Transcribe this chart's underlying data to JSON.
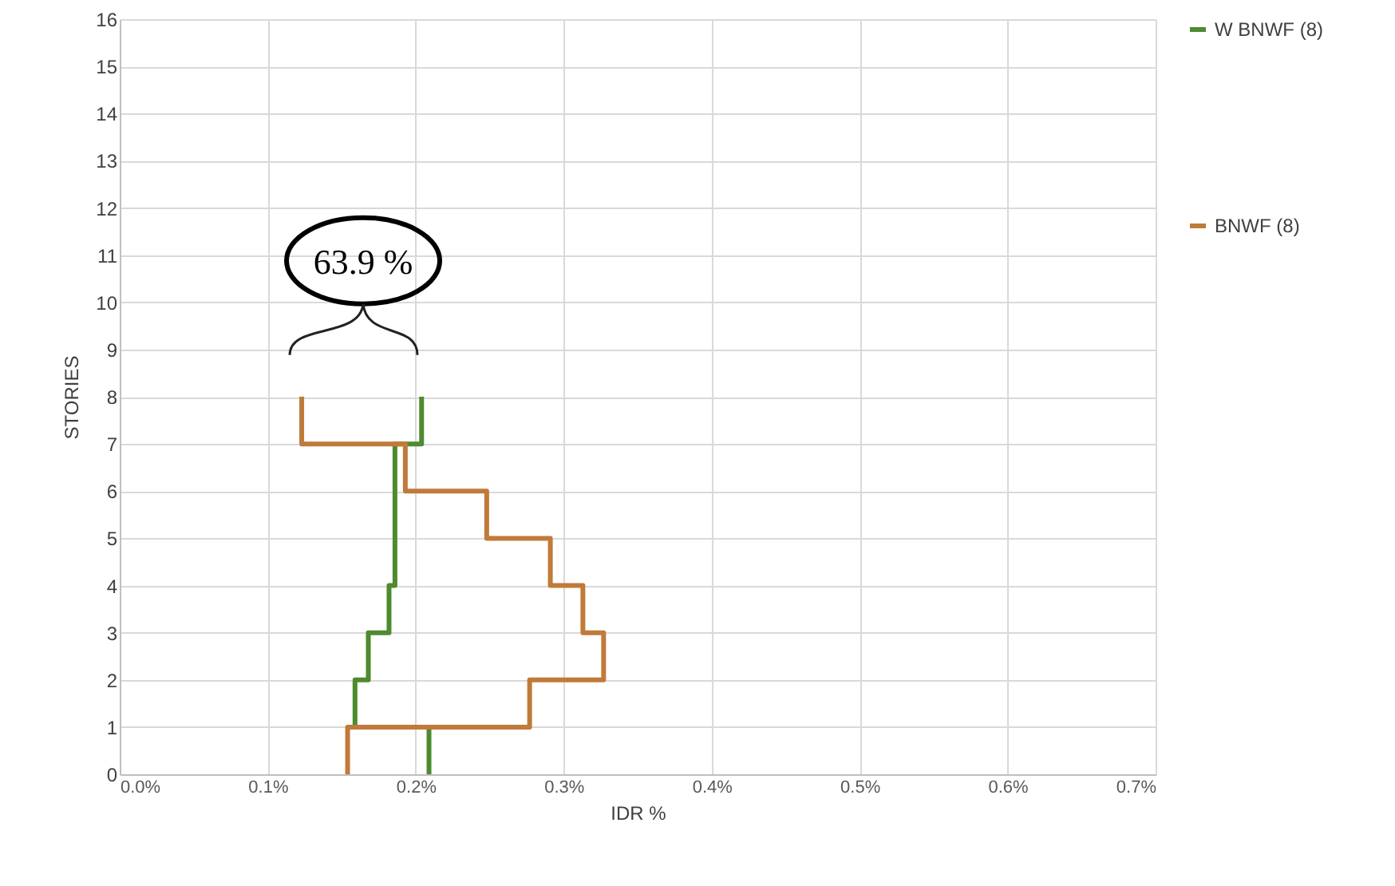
{
  "chart_data": {
    "type": "line",
    "xlabel": "IDR %",
    "ylabel": "STORIES",
    "xlim": [
      0,
      0.7
    ],
    "xticks": [
      {
        "value": 0,
        "label": "0.0%"
      },
      {
        "value": 0.1,
        "label": "0.1%"
      },
      {
        "value": 0.2,
        "label": "0.2%"
      },
      {
        "value": 0.3,
        "label": "0.3%"
      },
      {
        "value": 0.4,
        "label": "0.4%"
      },
      {
        "value": 0.5,
        "label": "0.5%"
      },
      {
        "value": 0.6,
        "label": "0.6%"
      },
      {
        "value": 0.7,
        "label": "0.7%"
      }
    ],
    "ylim": [
      0,
      16
    ],
    "yticks": [
      0,
      1,
      2,
      3,
      4,
      5,
      6,
      7,
      8,
      9,
      10,
      11,
      12,
      13,
      14,
      15,
      16
    ],
    "grid": true,
    "legend": "right",
    "marker": "none",
    "line_style": "solid",
    "annotations": [
      "63.9 %"
    ],
    "series": [
      {
        "name": "W BNWF (8)",
        "color": "#4e8a2e",
        "x": [
          0.209,
          0.209,
          0.159,
          0.159,
          0.168,
          0.168,
          0.182,
          0.182,
          0.186,
          0.186,
          0.204,
          0.204
        ],
        "values": [
          0,
          1,
          1,
          2,
          2,
          3,
          3,
          4,
          4,
          7,
          7,
          8
        ]
      },
      {
        "name": "BNWF (8)",
        "color": "#c07a3a",
        "x": [
          0.154,
          0.154,
          0.277,
          0.277,
          0.327,
          0.327,
          0.313,
          0.313,
          0.291,
          0.291,
          0.248,
          0.248,
          0.193,
          0.193,
          0.123,
          0.123
        ],
        "values": [
          0,
          1,
          1,
          2,
          2,
          3,
          3,
          4,
          4,
          5,
          5,
          6,
          6,
          7,
          7,
          8
        ]
      }
    ]
  }
}
